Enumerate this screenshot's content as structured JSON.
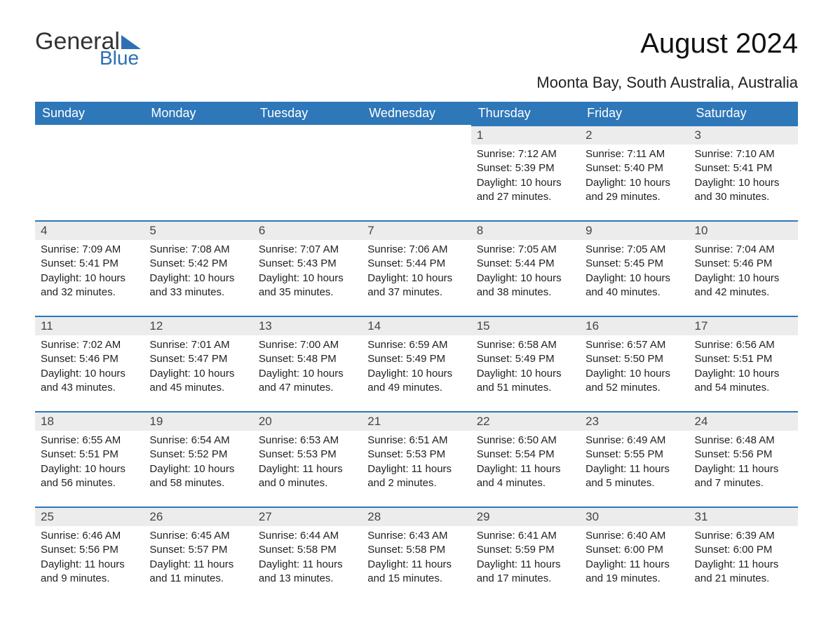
{
  "logo": {
    "word1": "General",
    "word2": "Blue"
  },
  "title": "August 2024",
  "subtitle": "Moonta Bay, South Australia, Australia",
  "colors": {
    "header_bg": "#2e77b8",
    "header_text": "#ffffff",
    "daynum_bg": "#ececec",
    "daynum_border": "#2e77b8",
    "text": "#222222",
    "logo_blue": "#2d6fb3"
  },
  "layout": {
    "columns": 7,
    "rows": 5,
    "leading_blanks": 4
  },
  "weekdays": [
    "Sunday",
    "Monday",
    "Tuesday",
    "Wednesday",
    "Thursday",
    "Friday",
    "Saturday"
  ],
  "days": [
    {
      "n": 1,
      "sunrise": "7:12 AM",
      "sunset": "5:39 PM",
      "dh": 10,
      "dm": 27
    },
    {
      "n": 2,
      "sunrise": "7:11 AM",
      "sunset": "5:40 PM",
      "dh": 10,
      "dm": 29
    },
    {
      "n": 3,
      "sunrise": "7:10 AM",
      "sunset": "5:41 PM",
      "dh": 10,
      "dm": 30
    },
    {
      "n": 4,
      "sunrise": "7:09 AM",
      "sunset": "5:41 PM",
      "dh": 10,
      "dm": 32
    },
    {
      "n": 5,
      "sunrise": "7:08 AM",
      "sunset": "5:42 PM",
      "dh": 10,
      "dm": 33
    },
    {
      "n": 6,
      "sunrise": "7:07 AM",
      "sunset": "5:43 PM",
      "dh": 10,
      "dm": 35
    },
    {
      "n": 7,
      "sunrise": "7:06 AM",
      "sunset": "5:44 PM",
      "dh": 10,
      "dm": 37
    },
    {
      "n": 8,
      "sunrise": "7:05 AM",
      "sunset": "5:44 PM",
      "dh": 10,
      "dm": 38
    },
    {
      "n": 9,
      "sunrise": "7:05 AM",
      "sunset": "5:45 PM",
      "dh": 10,
      "dm": 40
    },
    {
      "n": 10,
      "sunrise": "7:04 AM",
      "sunset": "5:46 PM",
      "dh": 10,
      "dm": 42
    },
    {
      "n": 11,
      "sunrise": "7:02 AM",
      "sunset": "5:46 PM",
      "dh": 10,
      "dm": 43
    },
    {
      "n": 12,
      "sunrise": "7:01 AM",
      "sunset": "5:47 PM",
      "dh": 10,
      "dm": 45
    },
    {
      "n": 13,
      "sunrise": "7:00 AM",
      "sunset": "5:48 PM",
      "dh": 10,
      "dm": 47
    },
    {
      "n": 14,
      "sunrise": "6:59 AM",
      "sunset": "5:49 PM",
      "dh": 10,
      "dm": 49
    },
    {
      "n": 15,
      "sunrise": "6:58 AM",
      "sunset": "5:49 PM",
      "dh": 10,
      "dm": 51
    },
    {
      "n": 16,
      "sunrise": "6:57 AM",
      "sunset": "5:50 PM",
      "dh": 10,
      "dm": 52
    },
    {
      "n": 17,
      "sunrise": "6:56 AM",
      "sunset": "5:51 PM",
      "dh": 10,
      "dm": 54
    },
    {
      "n": 18,
      "sunrise": "6:55 AM",
      "sunset": "5:51 PM",
      "dh": 10,
      "dm": 56
    },
    {
      "n": 19,
      "sunrise": "6:54 AM",
      "sunset": "5:52 PM",
      "dh": 10,
      "dm": 58
    },
    {
      "n": 20,
      "sunrise": "6:53 AM",
      "sunset": "5:53 PM",
      "dh": 11,
      "dm": 0
    },
    {
      "n": 21,
      "sunrise": "6:51 AM",
      "sunset": "5:53 PM",
      "dh": 11,
      "dm": 2
    },
    {
      "n": 22,
      "sunrise": "6:50 AM",
      "sunset": "5:54 PM",
      "dh": 11,
      "dm": 4
    },
    {
      "n": 23,
      "sunrise": "6:49 AM",
      "sunset": "5:55 PM",
      "dh": 11,
      "dm": 5
    },
    {
      "n": 24,
      "sunrise": "6:48 AM",
      "sunset": "5:56 PM",
      "dh": 11,
      "dm": 7
    },
    {
      "n": 25,
      "sunrise": "6:46 AM",
      "sunset": "5:56 PM",
      "dh": 11,
      "dm": 9
    },
    {
      "n": 26,
      "sunrise": "6:45 AM",
      "sunset": "5:57 PM",
      "dh": 11,
      "dm": 11
    },
    {
      "n": 27,
      "sunrise": "6:44 AM",
      "sunset": "5:58 PM",
      "dh": 11,
      "dm": 13
    },
    {
      "n": 28,
      "sunrise": "6:43 AM",
      "sunset": "5:58 PM",
      "dh": 11,
      "dm": 15
    },
    {
      "n": 29,
      "sunrise": "6:41 AM",
      "sunset": "5:59 PM",
      "dh": 11,
      "dm": 17
    },
    {
      "n": 30,
      "sunrise": "6:40 AM",
      "sunset": "6:00 PM",
      "dh": 11,
      "dm": 19
    },
    {
      "n": 31,
      "sunrise": "6:39 AM",
      "sunset": "6:00 PM",
      "dh": 11,
      "dm": 21
    }
  ],
  "labels": {
    "sunrise": "Sunrise:",
    "sunset": "Sunset:",
    "daylight": "Daylight:",
    "hours": "hours",
    "and": "and",
    "minutes": "minutes."
  }
}
